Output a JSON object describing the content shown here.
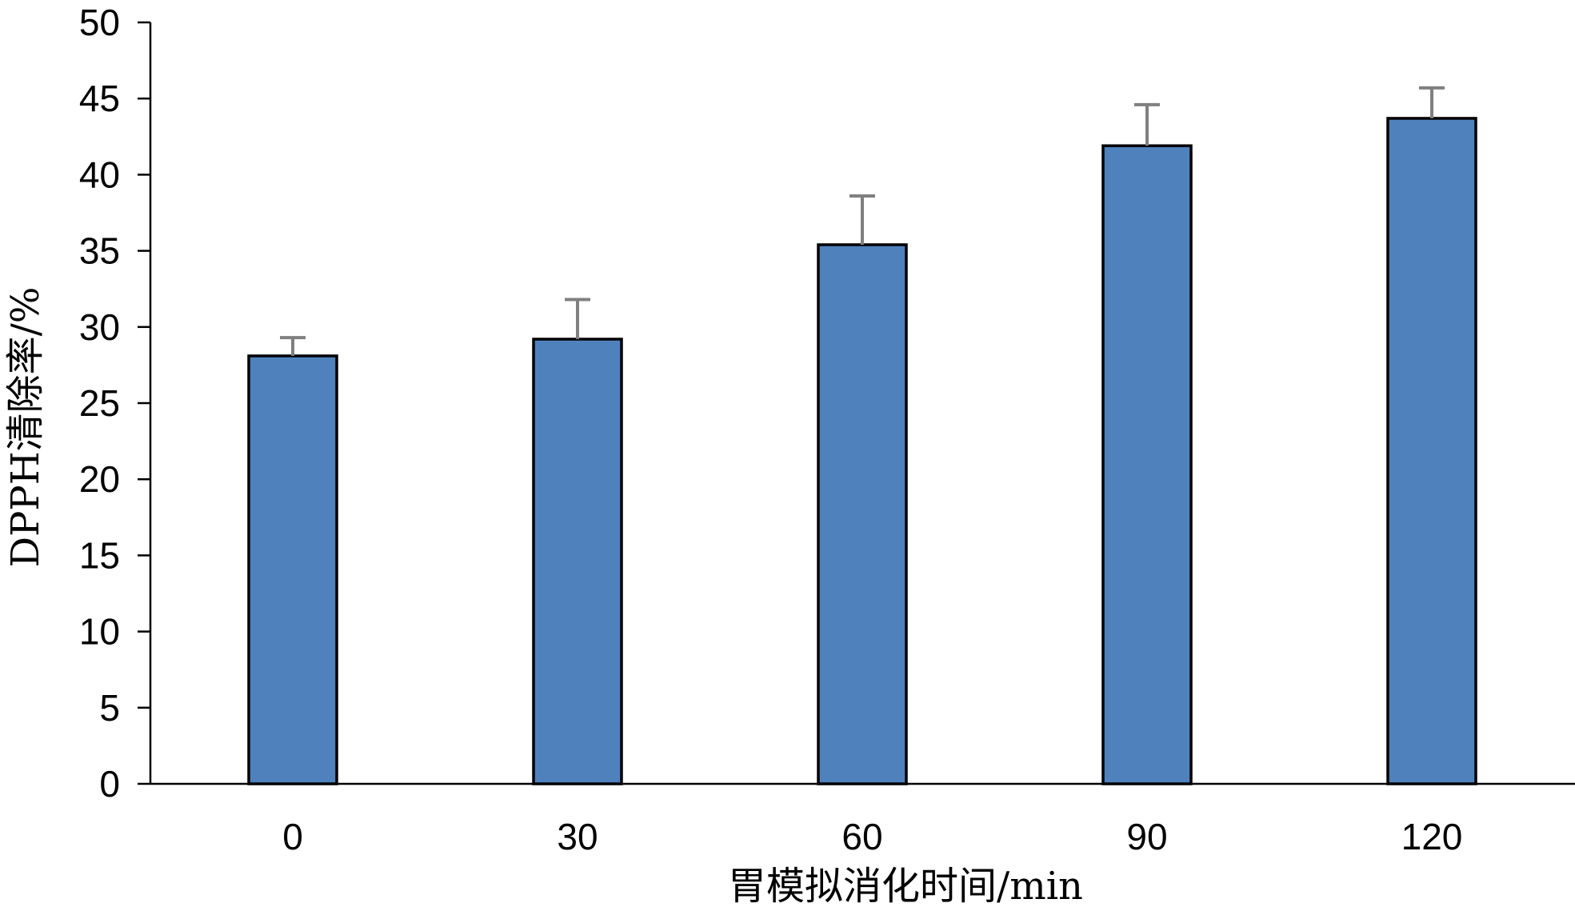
{
  "chart_data": {
    "type": "bar",
    "categories": [
      "0",
      "30",
      "60",
      "90",
      "120"
    ],
    "values": [
      28.1,
      29.2,
      35.4,
      41.9,
      43.7
    ],
    "error_upper": [
      1.2,
      2.6,
      3.2,
      2.7,
      2.0
    ],
    "xlabel": "胃模拟消化时间/min",
    "ylabel": "DPPH清除率/%",
    "ylim": [
      0,
      50
    ],
    "yticks": [
      0,
      5,
      10,
      15,
      20,
      25,
      30,
      35,
      40,
      45,
      50
    ],
    "grid": false,
    "legend": "none",
    "colors": {
      "bar_fill": "#4f81bd",
      "bar_edge": "#000000",
      "error_bar": "#808080",
      "axis": "#000000"
    }
  }
}
